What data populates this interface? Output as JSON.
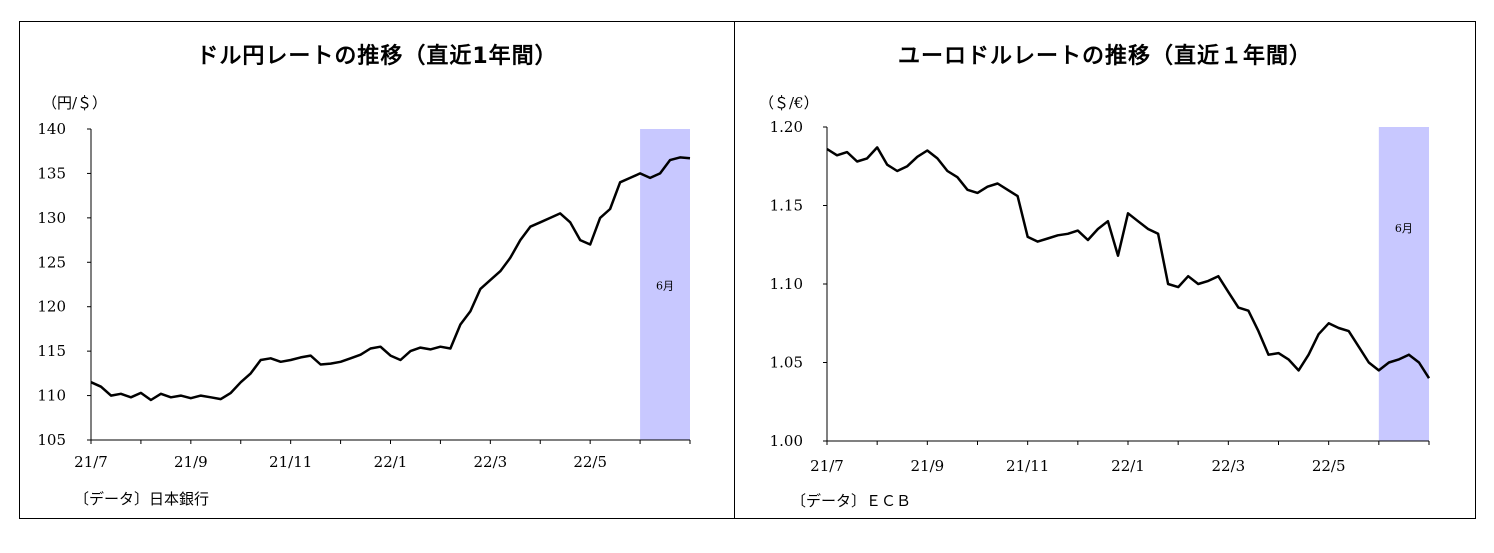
{
  "chart_data": [
    {
      "type": "line",
      "title": "ドル円レートの推移（直近1年間）",
      "ylabel": "（円/＄）",
      "source": "〔データ〕日本銀行",
      "xlabel": "",
      "ylim": [
        105,
        140
      ],
      "yticks": [
        "105",
        "110",
        "115",
        "120",
        "125",
        "130",
        "135",
        "140"
      ],
      "xtick_labels": [
        "21/7",
        "21/9",
        "21/11",
        "22/1",
        "22/3",
        "22/5"
      ],
      "xlim": [
        0,
        12
      ],
      "highlight": {
        "label": "6月",
        "from": 11,
        "to": 12,
        "color": "#c8c8ff"
      },
      "series": [
        {
          "x": [
            0.0,
            0.2,
            0.4,
            0.6,
            0.8,
            1.0,
            1.2,
            1.4,
            1.6,
            1.8,
            2.0,
            2.2,
            2.4,
            2.6,
            2.8,
            3.0,
            3.2,
            3.4,
            3.6,
            3.8,
            4.0,
            4.2,
            4.4,
            4.6,
            4.8,
            5.0,
            5.2,
            5.4,
            5.6,
            5.8,
            6.0,
            6.2,
            6.4,
            6.6,
            6.8,
            7.0,
            7.2,
            7.4,
            7.6,
            7.8,
            8.0,
            8.2,
            8.4,
            8.6,
            8.8,
            9.0,
            9.2,
            9.4,
            9.6,
            9.8,
            10.0,
            10.2,
            10.4,
            10.6,
            10.8,
            11.0,
            11.2,
            11.4,
            11.6,
            11.8,
            12.0
          ],
          "values": [
            111.5,
            111.0,
            110.0,
            110.2,
            109.8,
            110.3,
            109.5,
            110.2,
            109.8,
            110.0,
            109.7,
            110.0,
            109.8,
            109.6,
            110.3,
            111.5,
            112.5,
            114.0,
            114.2,
            113.8,
            114.0,
            114.3,
            114.5,
            113.5,
            113.6,
            113.8,
            114.2,
            114.6,
            115.3,
            115.5,
            114.5,
            114.0,
            115.0,
            115.4,
            115.2,
            115.5,
            115.3,
            118.0,
            119.5,
            122.0,
            123.0,
            124.0,
            125.5,
            127.5,
            129.0,
            129.5,
            130.0,
            130.5,
            129.5,
            127.5,
            127.0,
            130.0,
            131.0,
            134.0,
            134.5,
            135.0,
            134.5,
            135.0,
            136.5,
            136.8,
            136.7
          ]
        }
      ]
    },
    {
      "type": "line",
      "title": "ユーロドルレートの推移（直近１年間）",
      "ylabel": "（＄/€）",
      "source": "〔データ〕ＥＣＢ",
      "xlabel": "",
      "ylim": [
        1.0,
        1.2
      ],
      "yticks": [
        "1.00",
        "1.05",
        "1.10",
        "1.15",
        "1.20"
      ],
      "xtick_labels": [
        "21/7",
        "21/9",
        "21/11",
        "22/1",
        "22/3",
        "22/5"
      ],
      "xlim": [
        0,
        12
      ],
      "highlight": {
        "label": "6月",
        "from": 11,
        "to": 12,
        "color": "#c8c8ff"
      },
      "series": [
        {
          "x": [
            0.0,
            0.2,
            0.4,
            0.6,
            0.8,
            1.0,
            1.2,
            1.4,
            1.6,
            1.8,
            2.0,
            2.2,
            2.4,
            2.6,
            2.8,
            3.0,
            3.2,
            3.4,
            3.6,
            3.8,
            4.0,
            4.2,
            4.4,
            4.6,
            4.8,
            5.0,
            5.2,
            5.4,
            5.6,
            5.8,
            6.0,
            6.2,
            6.4,
            6.6,
            6.8,
            7.0,
            7.2,
            7.4,
            7.6,
            7.8,
            8.0,
            8.2,
            8.4,
            8.6,
            8.8,
            9.0,
            9.2,
            9.4,
            9.6,
            9.8,
            10.0,
            10.2,
            10.4,
            10.6,
            10.8,
            11.0,
            11.2,
            11.4,
            11.6,
            11.8,
            12.0
          ],
          "values": [
            1.186,
            1.182,
            1.184,
            1.178,
            1.18,
            1.187,
            1.176,
            1.172,
            1.175,
            1.181,
            1.185,
            1.18,
            1.172,
            1.168,
            1.16,
            1.158,
            1.162,
            1.164,
            1.16,
            1.156,
            1.13,
            1.127,
            1.129,
            1.131,
            1.132,
            1.134,
            1.128,
            1.135,
            1.14,
            1.118,
            1.145,
            1.14,
            1.135,
            1.132,
            1.1,
            1.098,
            1.105,
            1.1,
            1.102,
            1.105,
            1.095,
            1.085,
            1.083,
            1.07,
            1.055,
            1.056,
            1.052,
            1.045,
            1.055,
            1.068,
            1.075,
            1.072,
            1.07,
            1.06,
            1.05,
            1.045,
            1.05,
            1.052,
            1.055,
            1.05,
            1.04
          ]
        }
      ]
    }
  ]
}
